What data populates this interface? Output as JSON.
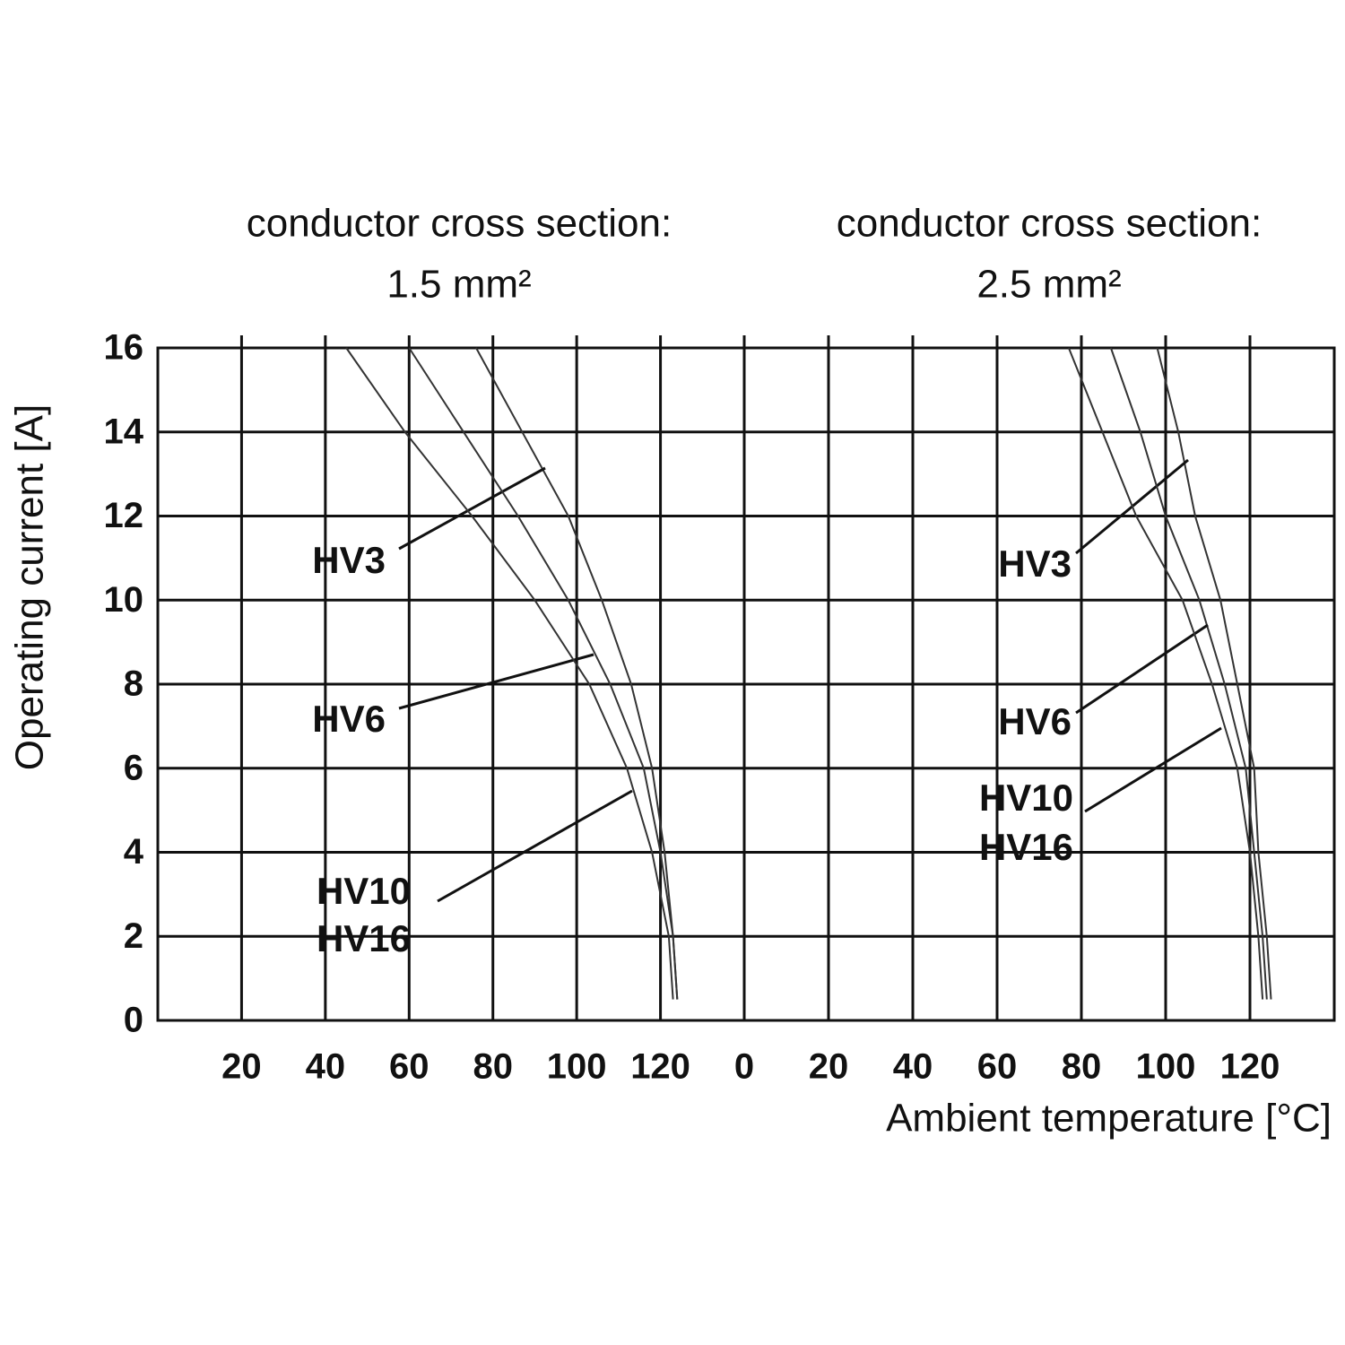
{
  "chart_data": [
    {
      "type": "line",
      "title": "conductor cross section:",
      "subtitle": "1.5 mm²",
      "ylabel": "Operating current [A]",
      "xlim": [
        0,
        140
      ],
      "xticks": [
        20,
        40,
        60,
        80,
        100,
        120
      ],
      "ylim": [
        0,
        16
      ],
      "yticks": [
        0,
        2,
        4,
        6,
        8,
        10,
        12,
        14,
        16
      ],
      "show_ytick_labels": true,
      "grid": true,
      "series": [
        {
          "labels": [
            "HV3"
          ],
          "color": "#333333",
          "x": [
            76,
            87,
            98,
            106,
            113,
            118,
            121,
            123,
            124
          ],
          "values": [
            16,
            14,
            12,
            10,
            8,
            6,
            4,
            2,
            0.5
          ]
        },
        {
          "labels": [
            "HV6"
          ],
          "color": "#333333",
          "x": [
            60,
            73,
            86,
            98,
            108,
            116,
            120,
            123,
            124
          ],
          "values": [
            16,
            14,
            12,
            10,
            8,
            6,
            4,
            2,
            0.5
          ]
        },
        {
          "labels": [
            "HV10",
            "HV16"
          ],
          "color": "#333333",
          "x": [
            45,
            59,
            75,
            90,
            103,
            112,
            118,
            122,
            123
          ],
          "values": [
            16,
            14,
            12,
            10,
            8,
            6,
            4,
            2,
            0.5
          ]
        }
      ]
    },
    {
      "type": "line",
      "title": "conductor cross section:",
      "subtitle": "2.5 mm²",
      "xlabel": "Ambient temperature [°C]",
      "xlim": [
        0,
        140
      ],
      "xticks": [
        0,
        20,
        40,
        60,
        80,
        100,
        120
      ],
      "ylim": [
        0,
        16
      ],
      "yticks": [
        0,
        2,
        4,
        6,
        8,
        10,
        12,
        14,
        16
      ],
      "show_ytick_labels": false,
      "grid": true,
      "series": [
        {
          "labels": [
            "HV3"
          ],
          "color": "#333333",
          "x": [
            98,
            103,
            107,
            113,
            117,
            121,
            122,
            124,
            125
          ],
          "values": [
            16,
            14,
            12,
            10,
            8,
            6,
            4,
            2,
            0.5
          ]
        },
        {
          "labels": [
            "HV6"
          ],
          "color": "#333333",
          "x": [
            87,
            94,
            100,
            108,
            114,
            119,
            121,
            123,
            124
          ],
          "values": [
            16,
            14,
            12,
            10,
            8,
            6,
            4,
            2,
            0.5
          ]
        },
        {
          "labels": [
            "HV10",
            "HV16"
          ],
          "color": "#333333",
          "x": [
            77,
            85,
            93,
            104,
            111,
            117,
            120,
            122,
            123
          ],
          "values": [
            16,
            14,
            12,
            10,
            8,
            6,
            4,
            2,
            0.5
          ]
        }
      ]
    }
  ]
}
